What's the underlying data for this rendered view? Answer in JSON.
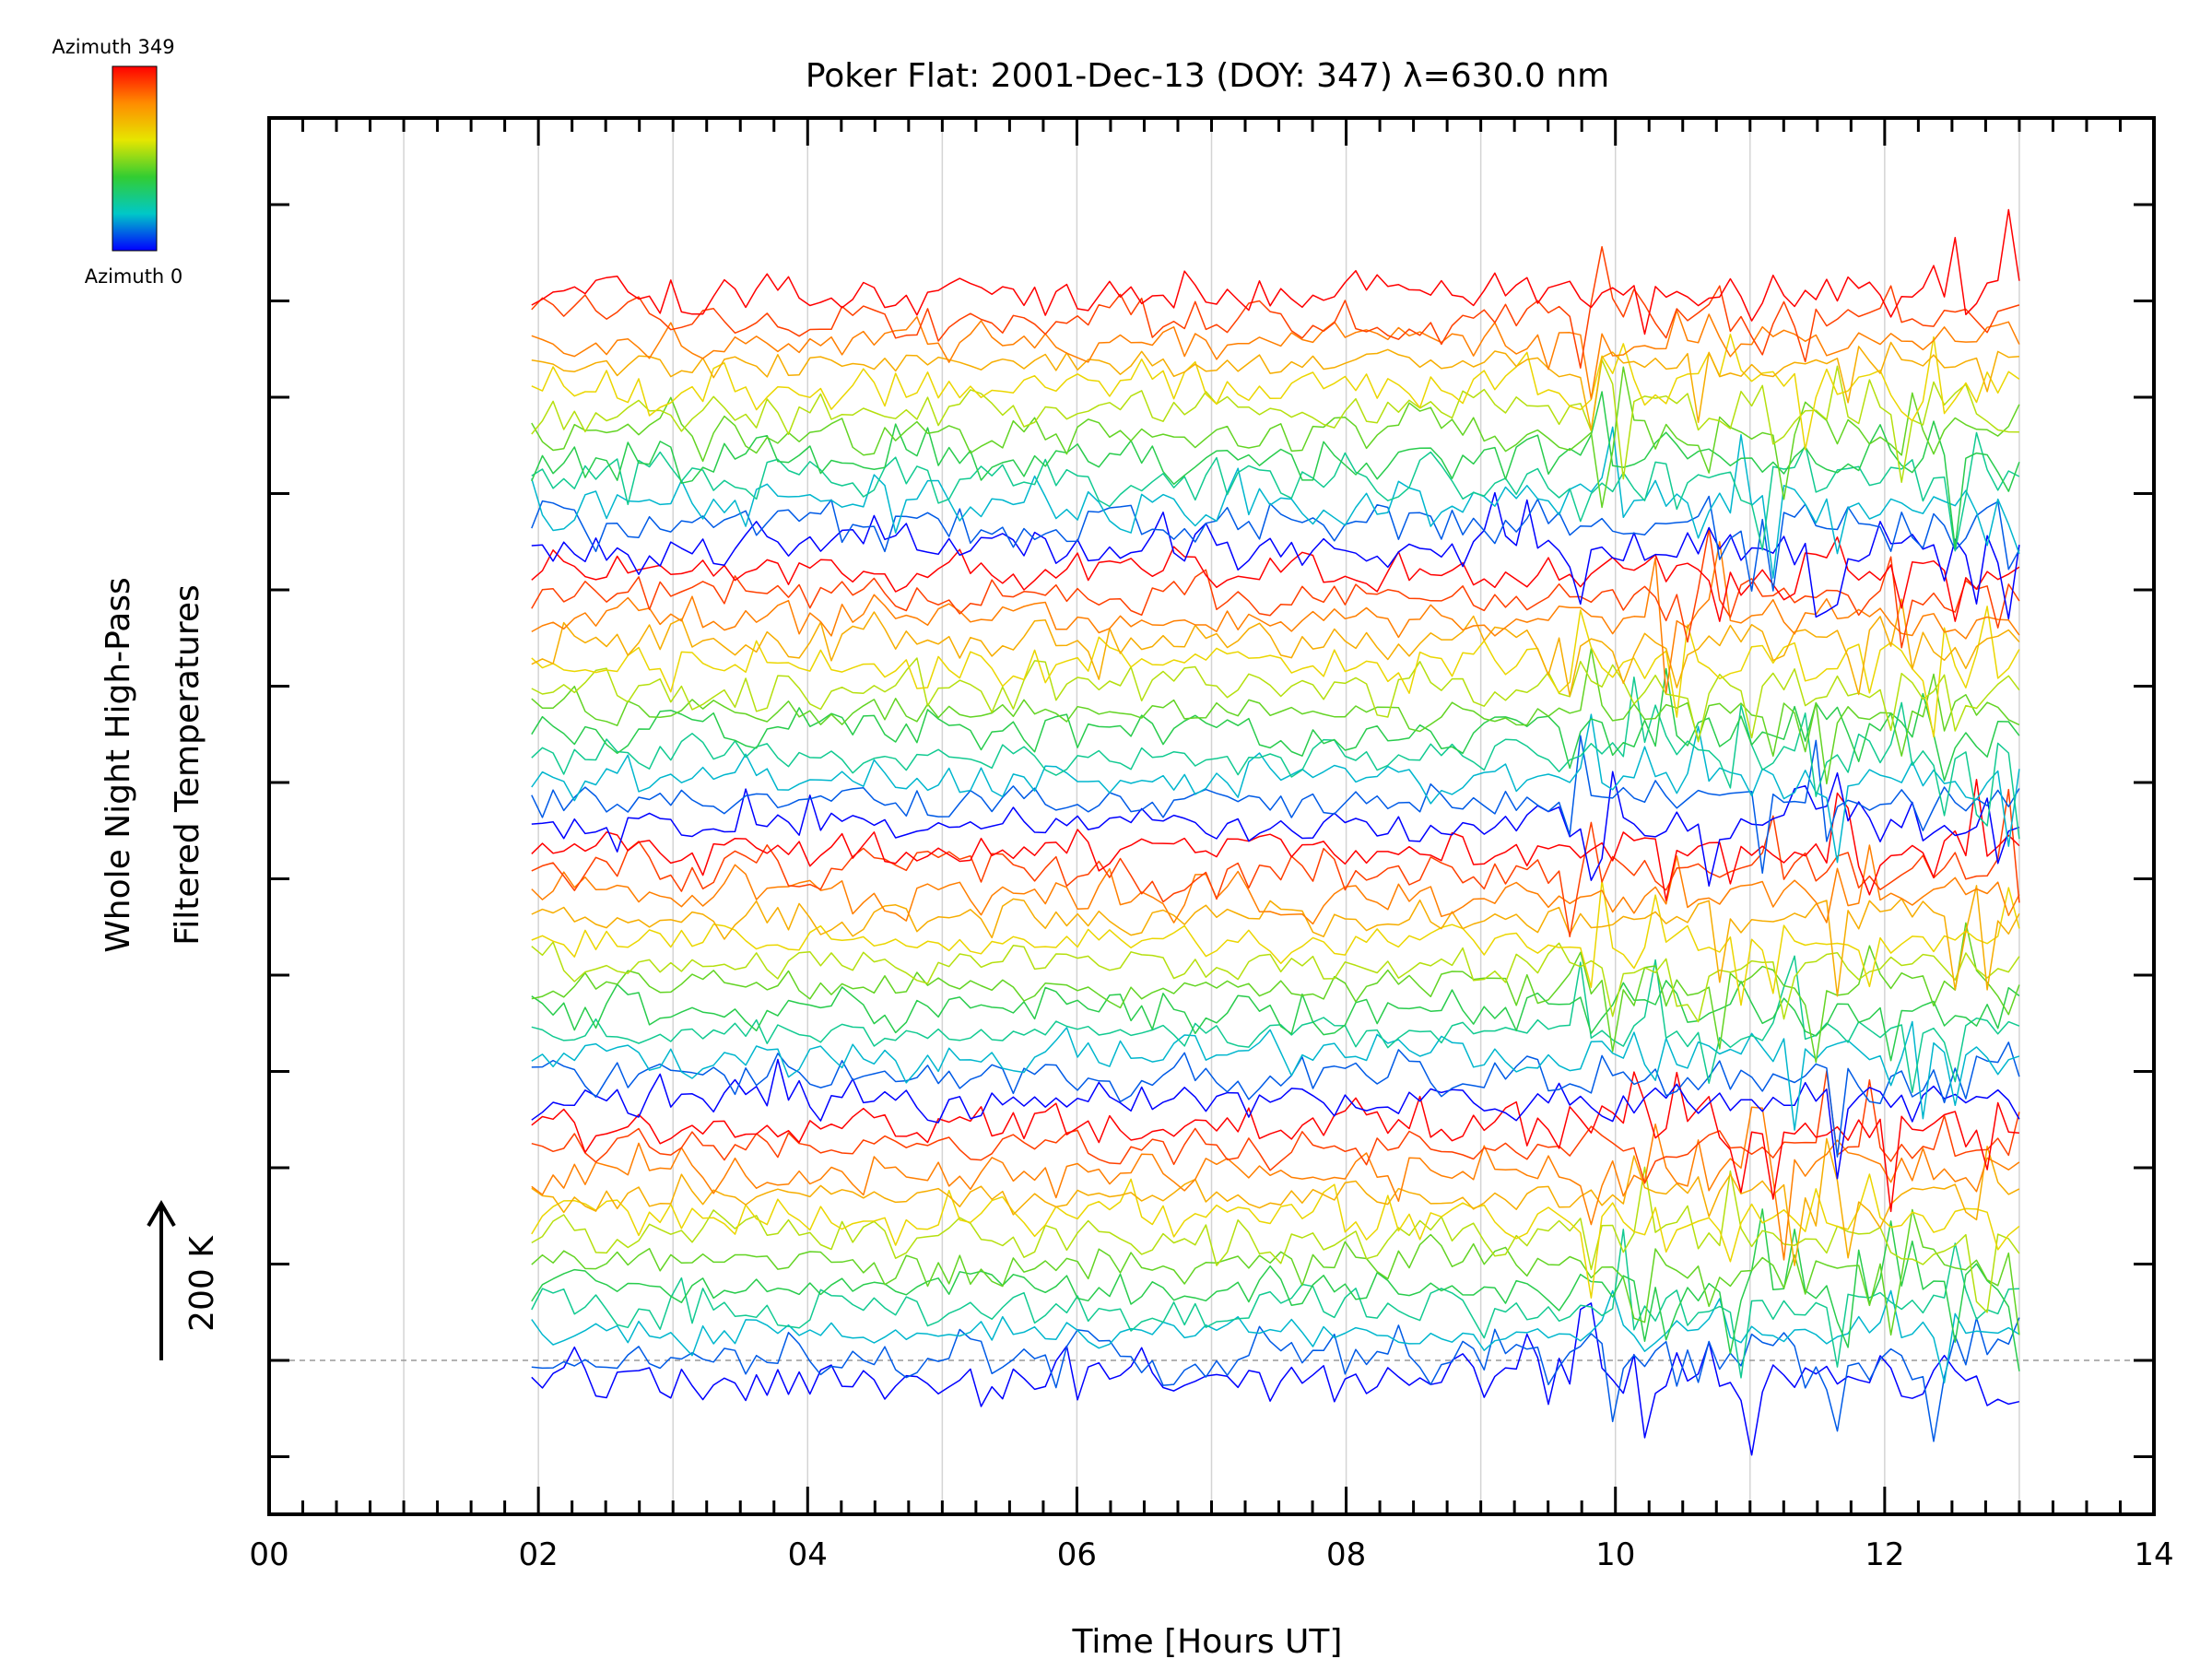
{
  "chart_data": {
    "type": "line",
    "title": "Poker Flat: 2001-Dec-13 (DOY: 347) λ=630.0 nm",
    "xlabel": "Time [Hours UT]",
    "ylabel_line1": "Whole Night High-Pass",
    "ylabel_line2": "Filtered Temperatures",
    "scale_label": "200 K",
    "xlim": [
      0,
      14
    ],
    "x_tick_labels": [
      "00",
      "02",
      "04",
      "06",
      "08",
      "10",
      "12",
      "14"
    ],
    "x_tick_values": [
      0,
      2,
      4,
      6,
      8,
      10,
      12,
      14
    ],
    "x_range_data": [
      1.95,
      13.0
    ],
    "grid": "vertical lines every hour",
    "colorbar": {
      "top_label": "Azimuth 349",
      "bottom_label": "Azimuth 0",
      "colors": [
        "#ff0000",
        "#ff8c00",
        "#e6e600",
        "#32cd32",
        "#00c8c8",
        "#0000ff"
      ]
    },
    "series_count": 48,
    "series_note": "48 stacked azimuth traces, each offset vertically by one stacking step; colour encodes azimuth from 0 (blue) to 349 (red)"
  }
}
